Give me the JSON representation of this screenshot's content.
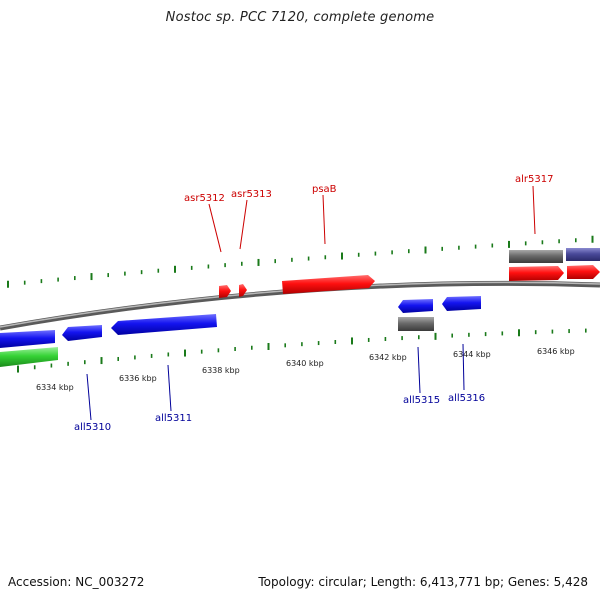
{
  "title": "Nostoc sp. PCC 7120, complete genome",
  "footer": {
    "accession": "Accession: NC_003272",
    "topology": "Topology: circular; Length: 6,413,771 bp; Genes: 5,428"
  },
  "colors": {
    "forward_gene": "#ff1010",
    "reverse_gene": "#1414f0",
    "rna": "#35d235",
    "unknown": "#6a6a6a",
    "other": "#4a4a9a",
    "tick": "#1a7a1a",
    "backbone": "#8c8c8c",
    "forward_label": "#cc0000",
    "reverse_label": "#000099"
  },
  "scale_labels": [
    "6334 kbp",
    "6336 kbp",
    "6338 kbp",
    "6340 kbp",
    "6342 kbp",
    "6344 kbp",
    "6346 kbp"
  ],
  "gene_labels": {
    "forward": [
      "asr5312",
      "asr5313",
      "psaB",
      "alr5317"
    ],
    "reverse": [
      "all5310",
      "all5311",
      "all5315",
      "all5316"
    ]
  }
}
